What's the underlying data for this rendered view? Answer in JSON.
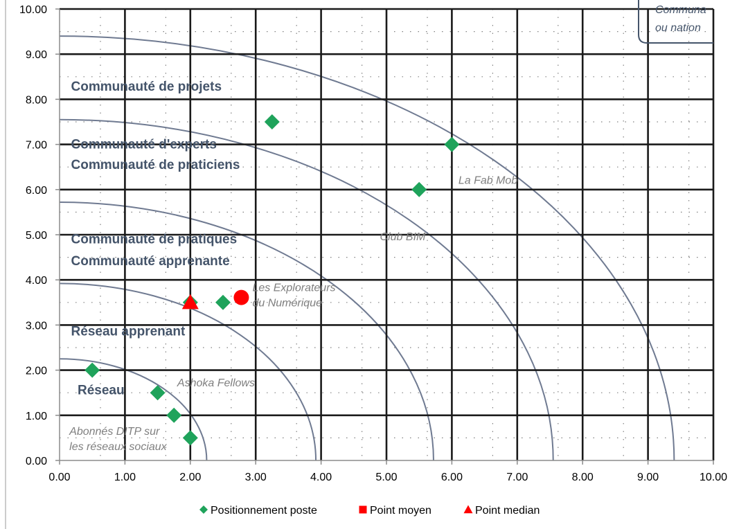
{
  "chart_data": {
    "type": "scatter",
    "xlim": [
      0,
      10
    ],
    "ylim": [
      0,
      10
    ],
    "x_ticks": [
      "0.00",
      "1.00",
      "2.00",
      "3.00",
      "4.00",
      "5.00",
      "6.00",
      "7.00",
      "8.00",
      "9.00",
      "10.00"
    ],
    "y_ticks": [
      "0.00",
      "1.00",
      "2.00",
      "3.00",
      "4.00",
      "5.00",
      "6.00",
      "7.00",
      "8.00",
      "9.00",
      "10.00"
    ],
    "grid": true,
    "legend_position": "bottom",
    "arc_radii": [
      2.25,
      3.92,
      5.72,
      7.55,
      9.4
    ],
    "series": [
      {
        "name": "Positionnement poste",
        "marker": "diamond",
        "color": "#1FA35B",
        "points": [
          {
            "x": 0.5,
            "y": 2.0
          },
          {
            "x": 1.5,
            "y": 1.5
          },
          {
            "x": 1.75,
            "y": 1.0
          },
          {
            "x": 2.0,
            "y": 0.5
          },
          {
            "x": 2.0,
            "y": 3.5
          },
          {
            "x": 2.5,
            "y": 3.5
          },
          {
            "x": 3.25,
            "y": 7.5
          },
          {
            "x": 5.5,
            "y": 6.0
          },
          {
            "x": 6.0,
            "y": 7.0
          }
        ]
      },
      {
        "name": "Point moyen",
        "marker": "square",
        "plot_marker": "circle",
        "color": "#FF0000",
        "points": [
          {
            "x": 2.78,
            "y": 3.61
          }
        ]
      },
      {
        "name": "Point median",
        "marker": "triangle",
        "color": "#FF0000",
        "points": [
          {
            "x": 2.0,
            "y": 3.5
          }
        ]
      }
    ],
    "zone_labels": [
      {
        "text": "Communauté de projets",
        "x": 0.08,
        "y": 8.28
      },
      {
        "text": "Communauté d'experts",
        "x": 0.08,
        "y": 7.0
      },
      {
        "text": "Communauté de praticiens",
        "x": 0.08,
        "y": 6.55
      },
      {
        "text": "Communauté de pratiques",
        "x": 0.08,
        "y": 4.9
      },
      {
        "text": "Communauté apprenante",
        "x": 0.08,
        "y": 4.42
      },
      {
        "text": "Réseau apprenant",
        "x": 0.08,
        "y": 2.86
      },
      {
        "text": "Réseau",
        "x": 0.18,
        "y": 1.56
      }
    ],
    "org_labels": [
      {
        "lines": [
          "La Fab Mob"
        ],
        "x": 6.1,
        "y": 6.22
      },
      {
        "lines": [
          "Club BIM"
        ],
        "x": 4.9,
        "y": 4.97
      },
      {
        "lines": [
          "Les Explorateurs",
          "du Numérique"
        ],
        "x": 2.95,
        "y": 3.84
      },
      {
        "lines": [
          "Ashoka Fellows"
        ],
        "x": 1.8,
        "y": 1.73
      },
      {
        "lines": [
          "Abonnés DITP sur",
          "les réseaux sociaux"
        ],
        "x": 0.15,
        "y": 0.66
      }
    ],
    "corner_box": {
      "lines": [
        "Communa",
        "ou nation"
      ]
    }
  }
}
